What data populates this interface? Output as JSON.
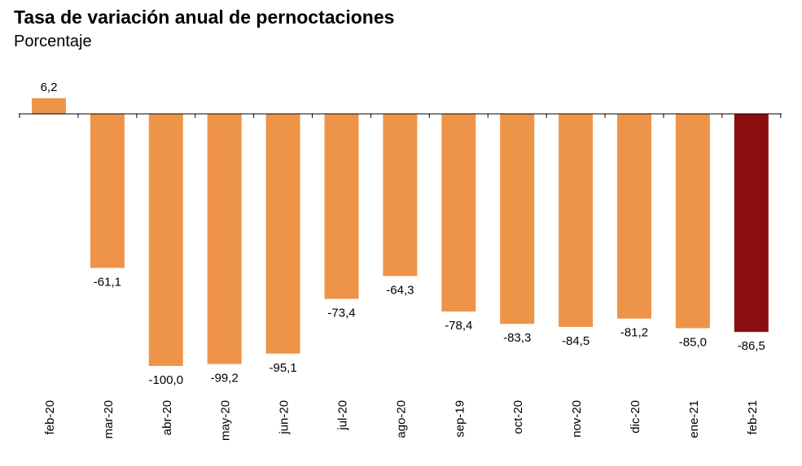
{
  "chart_data": {
    "type": "bar",
    "title": "Tasa de variación anual de pernoctaciones",
    "subtitle": "Porcentaje",
    "categories": [
      "feb-20",
      "mar-20",
      "abr-20",
      "may-20",
      "jun-20",
      "jul-20",
      "ago-20",
      "sep-19",
      "oct-20",
      "nov-20",
      "dic-20",
      "ene-21",
      "feb-21"
    ],
    "values": [
      6.2,
      -61.1,
      -100.0,
      -99.2,
      -95.1,
      -73.4,
      -64.3,
      -78.4,
      -83.3,
      -84.5,
      -81.2,
      -85.0,
      -86.5
    ],
    "data_labels": [
      "6,2",
      "-61,1",
      "-100,0",
      "-99,2",
      "-95,1",
      "-73,4",
      "-64,3",
      "-78,4",
      "-83,3",
      "-84,5",
      "-81,2",
      "-85,0",
      "-86,5"
    ],
    "colors": {
      "default": "#EE9449",
      "highlight": "#8B0D0D"
    },
    "highlight_index": 12,
    "grid": false,
    "legend": "none"
  }
}
